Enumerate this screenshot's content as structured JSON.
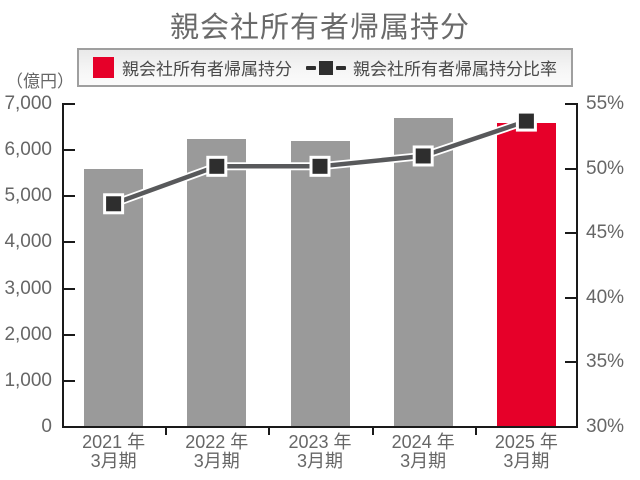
{
  "colors": {
    "accent_red": "#e60029",
    "bar_gray": "#9a9a9a",
    "line_gray": "#58595b",
    "marker_dark": "#2e2e2e",
    "axis_black": "#1a1a1a",
    "text_gray": "#666666",
    "legend_border": "#9f9f9f"
  },
  "chart_data": {
    "type": "combo-bar-line",
    "title": "親会社所有者帰属持分",
    "left_axis_unit": "（億円）",
    "categories": [
      "2021 年\n3月期",
      "2022 年\n3月期",
      "2023 年\n3月期",
      "2024 年\n3月期",
      "2025 年\n3月期"
    ],
    "bar_series": {
      "name": "親会社所有者帰属持分",
      "axis": "left",
      "values": [
        5570,
        6230,
        6180,
        6670,
        6570
      ],
      "colors": [
        "#9a9a9a",
        "#9a9a9a",
        "#9a9a9a",
        "#9a9a9a",
        "#e60029"
      ]
    },
    "line_series": {
      "name": "親会社所有者帰属持分比率",
      "axis": "right",
      "values": [
        47.2,
        50.1,
        50.1,
        50.9,
        53.6
      ],
      "line_color": "#58595b",
      "marker_color": "#2e2e2e"
    },
    "left_axis": {
      "min": 0,
      "max": 7000,
      "step": 1000,
      "tick_labels": [
        "7,000",
        "6,000",
        "5,000",
        "4,000",
        "3,000",
        "2,000",
        "1,000",
        "0"
      ]
    },
    "right_axis": {
      "min": 30,
      "max": 55,
      "step": 5,
      "tick_labels": [
        "55%",
        "50%",
        "45%",
        "40%",
        "35%",
        "30%"
      ]
    },
    "legend": {
      "bar_label": "親会社所有者帰属持分",
      "line_label": "親会社所有者帰属持分比率"
    }
  }
}
